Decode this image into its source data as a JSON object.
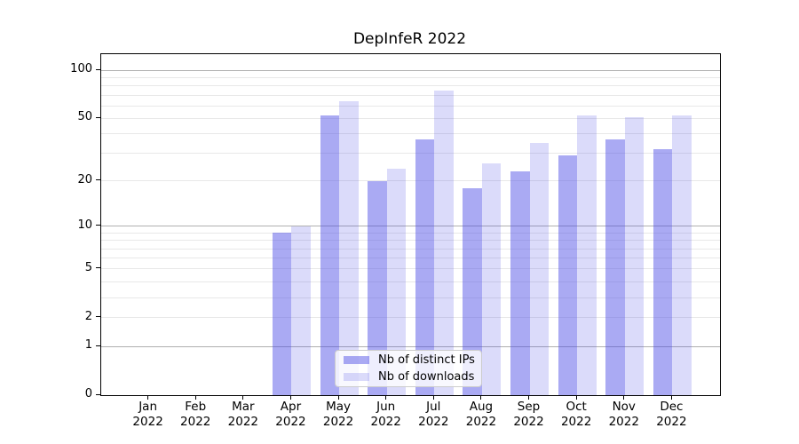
{
  "chart_data": {
    "type": "bar",
    "title": "DepInfeR 2022",
    "scale": "log1p",
    "grid": "horizontal, major at decades, minor light",
    "legend_position": "lower center",
    "categories": [
      "Jan 2022",
      "Feb 2022",
      "Mar 2022",
      "Apr 2022",
      "May 2022",
      "Jun 2022",
      "Jul 2022",
      "Aug 2022",
      "Sep 2022",
      "Oct 2022",
      "Nov 2022",
      "Dec 2022"
    ],
    "month_line1": [
      "Jan",
      "Feb",
      "Mar",
      "Apr",
      "May",
      "Jun",
      "Jul",
      "Aug",
      "Sep",
      "Oct",
      "Nov",
      "Dec"
    ],
    "month_line2": [
      "2022",
      "2022",
      "2022",
      "2022",
      "2022",
      "2022",
      "2022",
      "2022",
      "2022",
      "2022",
      "2022",
      "2022"
    ],
    "series": [
      {
        "name": "Nb of distinct IPs",
        "key": "distinct-ips",
        "color": "rgba(74,74,229,0.47)",
        "values": [
          0,
          0,
          0,
          9,
          52,
          20,
          37,
          18,
          23,
          29,
          37,
          32
        ]
      },
      {
        "name": "Nb of downloads",
        "key": "downloads",
        "color": "rgba(74,74,229,0.20)",
        "values": [
          0,
          0,
          0,
          10,
          64,
          24,
          75,
          26,
          35,
          52,
          51,
          52
        ]
      }
    ],
    "ylim": [
      0,
      126
    ],
    "y_tick_labels": [
      "100",
      "50",
      "20",
      "10",
      "5",
      "2",
      "1",
      "0"
    ],
    "y_tick_values": [
      100,
      50,
      20,
      10,
      5,
      2,
      1,
      0
    ],
    "y_major_grid_values": [
      100,
      10,
      1
    ],
    "y_minor_grid_values": [
      90,
      80,
      70,
      60,
      50,
      40,
      30,
      20,
      9,
      8,
      7,
      6,
      5,
      4,
      3,
      2
    ]
  },
  "colors": {
    "major_grid": "#b0b0b0",
    "minor_grid": "#e8e8e8",
    "axis": "#000000",
    "legend_border": "#cccccc"
  },
  "layout_note": "bar pair centered on month tick; left bar = distinct IPs, right bar = downloads"
}
